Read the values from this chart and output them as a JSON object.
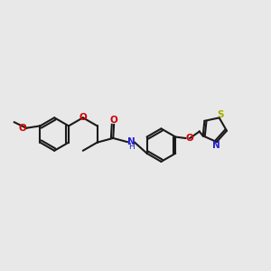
{
  "bg_color": "#e8e8e8",
  "bond_color": "#1a1a1a",
  "oxygen_color": "#cc0000",
  "nitrogen_color": "#2222cc",
  "sulfur_color": "#aaaa00",
  "line_width": 1.5,
  "dbo": 0.055,
  "xlim": [
    0,
    10
  ],
  "ylim": [
    2,
    8
  ]
}
